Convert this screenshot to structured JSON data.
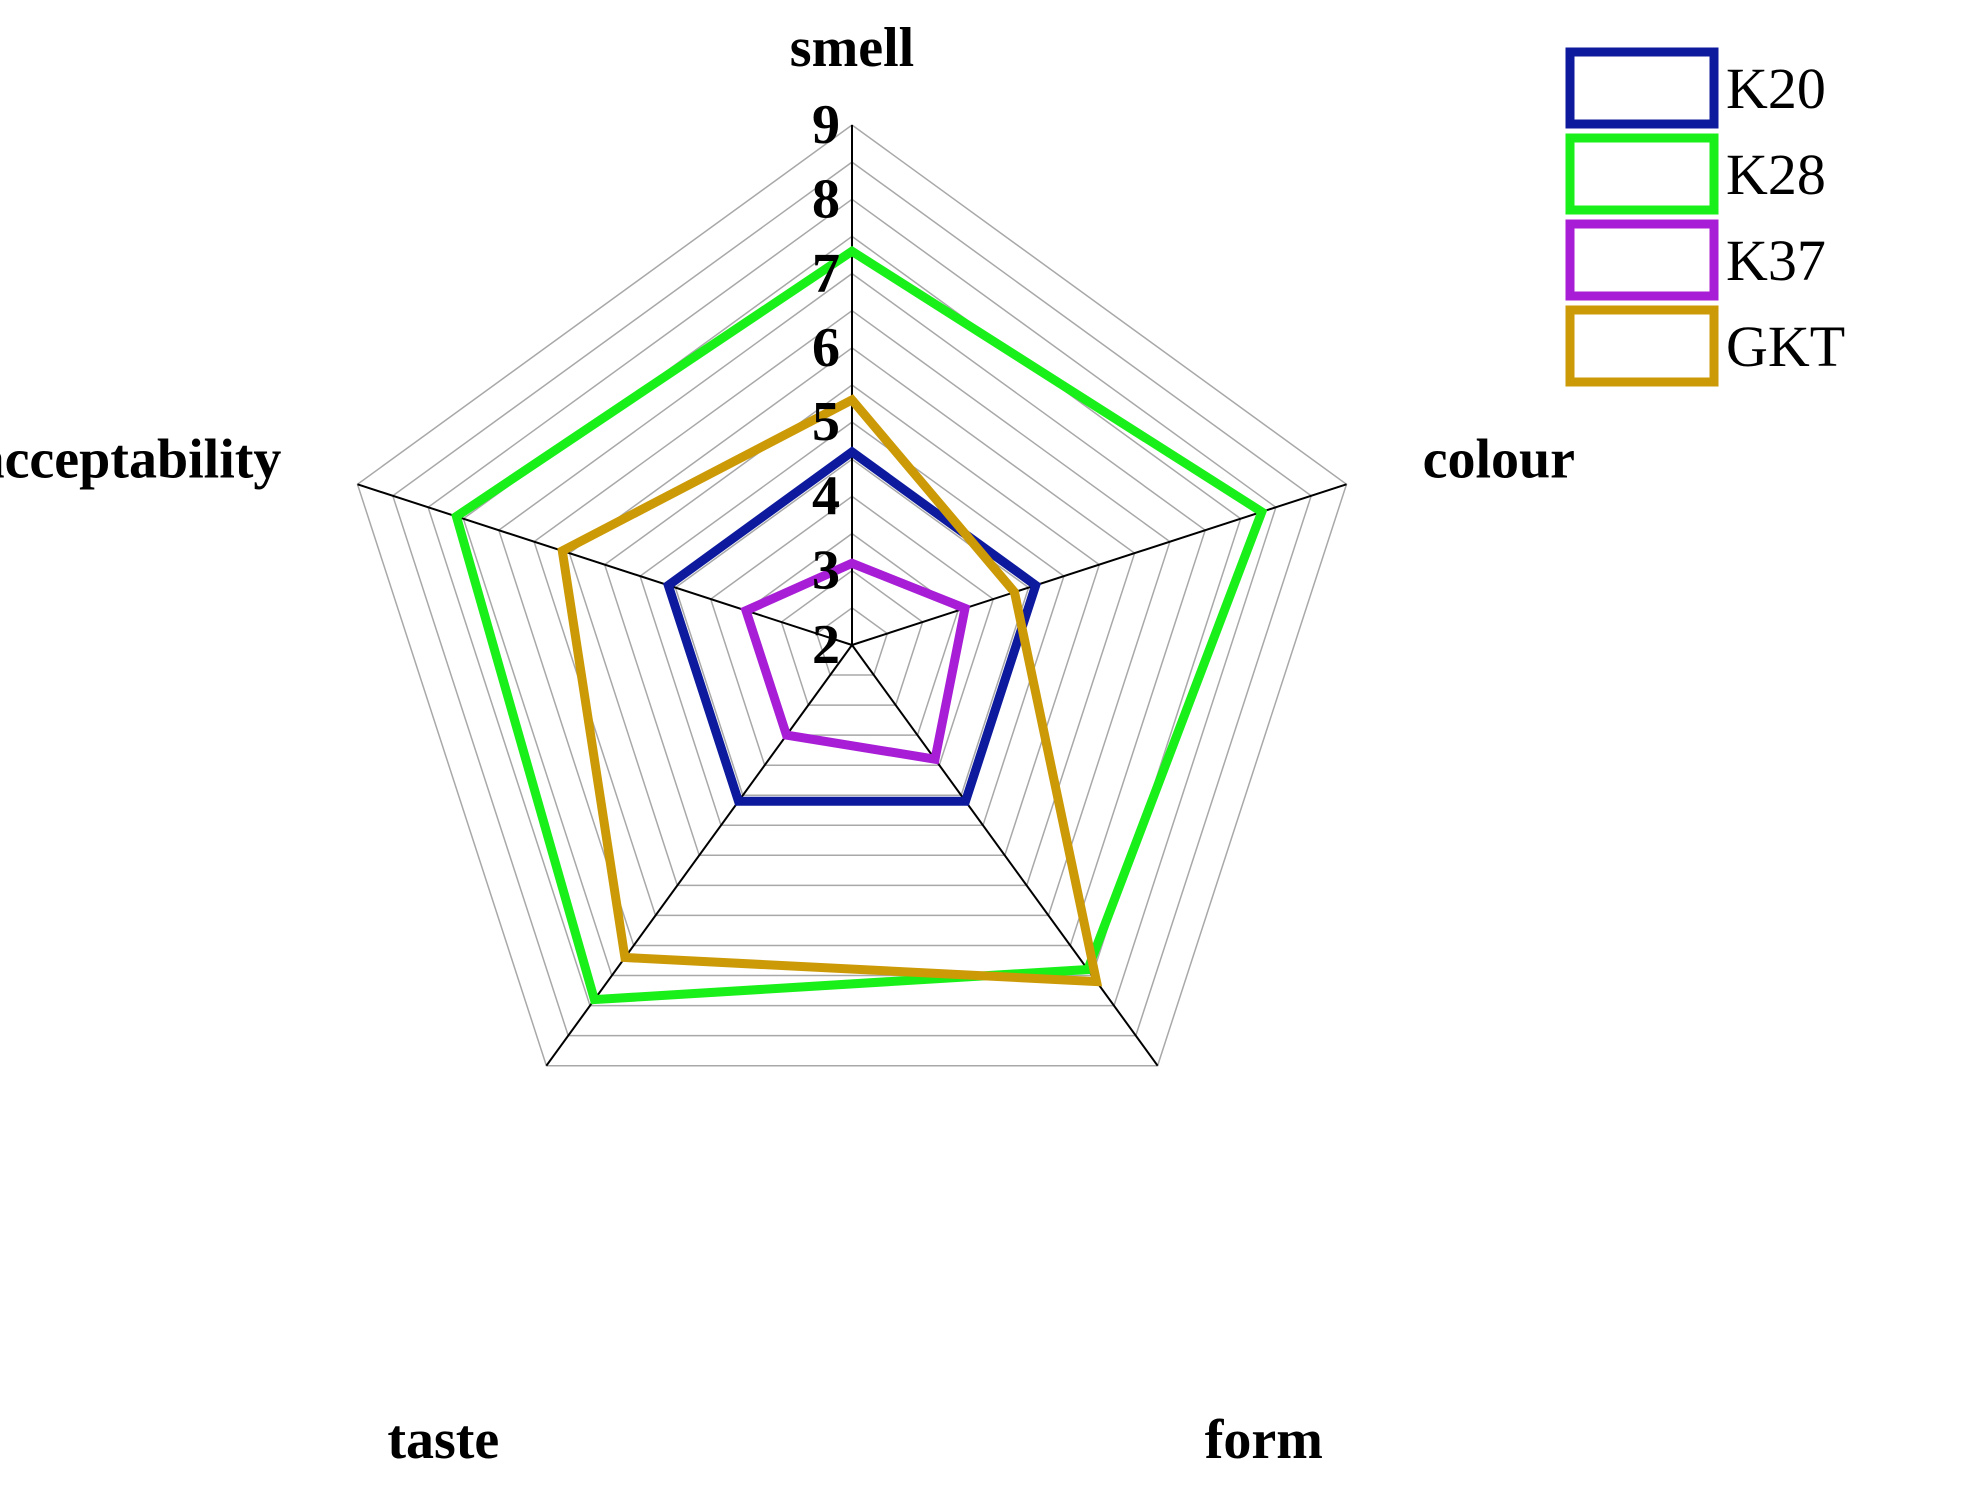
{
  "chart_data": {
    "type": "radar",
    "axes": [
      "smell",
      "colour",
      "form",
      "taste",
      "acceptability"
    ],
    "rlim": [
      2,
      9
    ],
    "ticks": [
      "2",
      "3",
      "4",
      "5",
      "6",
      "7",
      "8",
      "9"
    ],
    "tick_values": [
      2,
      3,
      4,
      5,
      6,
      7,
      8,
      9
    ],
    "grid": true,
    "legend_position": "top-right",
    "series": [
      {
        "name": "K20",
        "color": "#0d1a9e",
        "values": [
          4.6,
          4.6,
          4.6,
          4.6,
          4.6
        ]
      },
      {
        "name": "K28",
        "color": "#19f019",
        "values": [
          7.3,
          7.8,
          7.4,
          7.9,
          7.6
        ]
      },
      {
        "name": "K37",
        "color": "#a81ed6",
        "values": [
          3.1,
          3.6,
          3.9,
          3.5,
          3.5
        ]
      },
      {
        "name": "GKT",
        "color": "#cc9a06",
        "values": [
          5.3,
          4.3,
          7.6,
          7.2,
          6.1
        ]
      }
    ]
  }
}
